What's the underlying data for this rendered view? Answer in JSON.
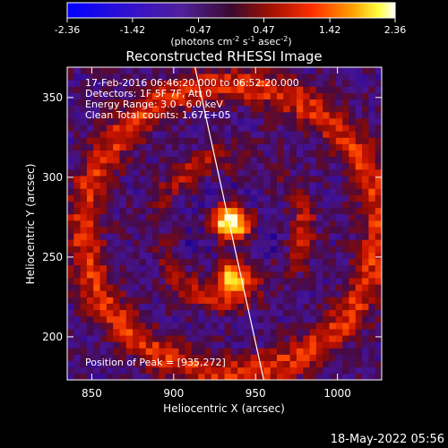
{
  "colorbar": {
    "ticks": [
      "-2.36",
      "-1.42",
      "-0.47",
      "0.47",
      "1.42",
      "2.36"
    ],
    "unit_main": "(photons cm",
    "unit_sup1": "-2",
    "unit_mid": " s",
    "unit_sup2": "-1",
    "unit_end": " asec",
    "unit_sup3": "-2",
    "unit_close": ")",
    "range": [
      -2.36,
      2.36
    ]
  },
  "footer": {
    "timestamp": "18-May-2022 05:56"
  },
  "chart_data": {
    "type": "heatmap",
    "title": "Reconstructed RHESSI Image",
    "xlabel": "Heliocentric X (arcsec)",
    "ylabel": "Heliocentric Y (arcsec)",
    "xlim": [
      835,
      1027
    ],
    "ylim": [
      173,
      369
    ],
    "xticks": [
      850,
      900,
      950,
      1000
    ],
    "yticks": [
      200,
      250,
      300,
      350
    ],
    "xtick_labels": [
      "850",
      "900",
      "950",
      "1000"
    ],
    "ytick_labels": [
      "200",
      "250",
      "300",
      "350"
    ],
    "info_lines": [
      "17-Feb-2016 06:46:20.000 to 06:52:20.000",
      "Detectors: 1F 5F 7F, Att 0",
      "Energy Range: 3.0 - 6.0 keV",
      "Clean     Total counts: 1.67E+05"
    ],
    "peak_label": "Position of Peak = [935,272]",
    "peak": [
      935,
      272
    ],
    "secondary_source": [
      937,
      237
    ],
    "limb_line": [
      [
        913,
        369
      ],
      [
        955,
        173
      ]
    ],
    "colormap": "red-temperature"
  }
}
